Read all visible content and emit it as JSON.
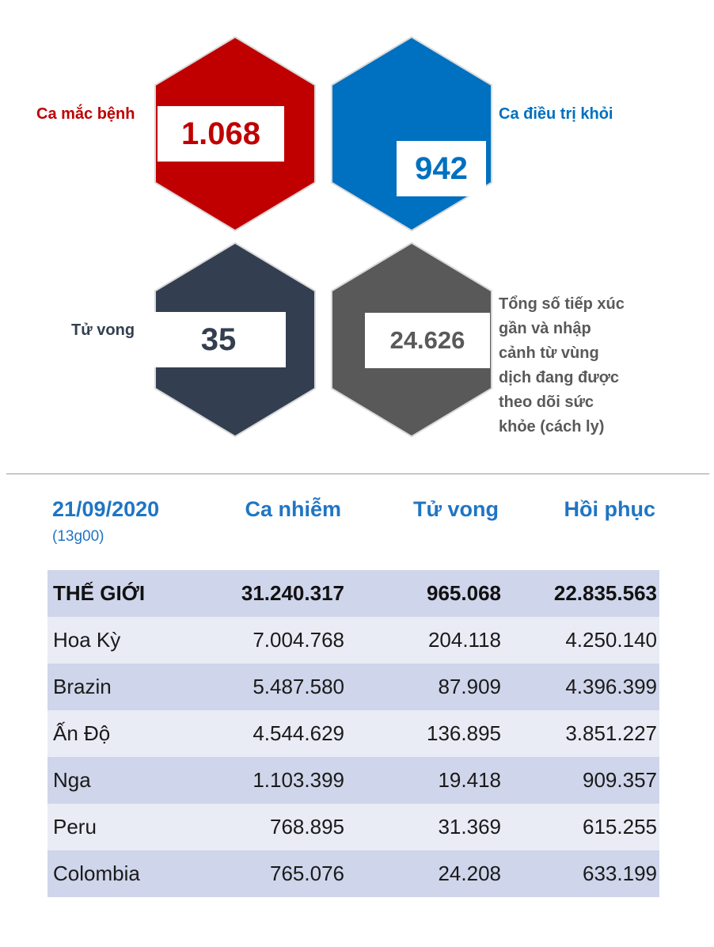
{
  "stats": {
    "cases": {
      "label": "Ca mắc bệnh",
      "value": "1.068",
      "color": "#c00000"
    },
    "recovered": {
      "label": "Ca điều trị khỏi",
      "value": "942",
      "color": "#0070c0"
    },
    "deaths": {
      "label": "Tử vong",
      "value": "35",
      "color": "#333f50"
    },
    "monitored": {
      "label_lines": [
        "Tổng số tiếp xúc",
        "gần và nhập",
        "cảnh từ vùng",
        "dịch đang được",
        "theo dõi sức",
        "khỏe (cách ly)"
      ],
      "value": "24.626",
      "color": "#595959"
    }
  },
  "table": {
    "date": "21/09/2020",
    "time": "(13g00)",
    "headers": [
      "Ca nhiễm",
      "Tử vong",
      "Hồi phục"
    ],
    "rows": [
      {
        "name": "THẾ GIỚI",
        "infected": "31.240.317",
        "deaths": "965.068",
        "recovered": "22.835.563"
      },
      {
        "name": "Hoa Kỳ",
        "infected": "7.004.768",
        "deaths": "204.118",
        "recovered": "4.250.140"
      },
      {
        "name": "Brazin",
        "infected": "5.487.580",
        "deaths": "87.909",
        "recovered": "4.396.399"
      },
      {
        "name": "Ấn Độ",
        "infected": "4.544.629",
        "deaths": "136.895",
        "recovered": "3.851.227"
      },
      {
        "name": "Nga",
        "infected": "1.103.399",
        "deaths": "19.418",
        "recovered": "909.357"
      },
      {
        "name": "Peru",
        "infected": "768.895",
        "deaths": "31.369",
        "recovered": "615.255"
      },
      {
        "name": "Colombia",
        "infected": "765.076",
        "deaths": "24.208",
        "recovered": "633.199"
      }
    ],
    "row_colors": [
      "#cfd5ea",
      "#e9ebf5"
    ],
    "header_color": "#1f75c4"
  }
}
